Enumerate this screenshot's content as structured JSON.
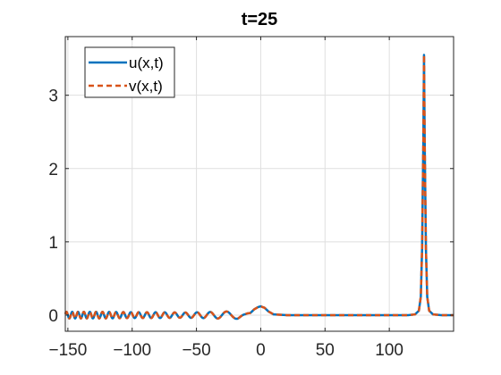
{
  "chart_data": {
    "type": "line",
    "title": "t=25",
    "xlabel": "",
    "ylabel": "",
    "xlim": [
      -152,
      150
    ],
    "ylim": [
      -0.22,
      3.8
    ],
    "x_ticks": [
      -150,
      -100,
      -50,
      0,
      50,
      100
    ],
    "y_ticks": [
      0,
      1,
      2,
      3
    ],
    "grid": true,
    "legend_position": "top-left",
    "series": [
      {
        "name": "u(x,t)",
        "style": "solid",
        "color": "#0072BD",
        "x": [
          -152,
          -140,
          -120,
          -100,
          -80,
          -60,
          -45,
          -35,
          -25,
          -18,
          -12,
          -8,
          -5,
          -2,
          0,
          3,
          6,
          10,
          20,
          40,
          60,
          80,
          100,
          115,
          120,
          123,
          124.5,
          125.5,
          126.5,
          127,
          127.5,
          128.5,
          129.5,
          131,
          134,
          140,
          150
        ],
        "y": [
          0.0,
          0.0,
          0.0,
          0.0,
          0.0,
          0.0,
          0.0,
          0.0,
          0.0,
          0.0,
          0.0,
          0.03,
          0.08,
          0.11,
          0.12,
          0.1,
          0.05,
          0.01,
          0.0,
          0.0,
          0.0,
          0.0,
          0.0,
          0.0,
          0.01,
          0.06,
          0.25,
          0.9,
          2.4,
          3.55,
          2.4,
          0.9,
          0.25,
          0.06,
          0.01,
          0.0,
          0.0
        ],
        "oscillation_amplitude": [
          0.045,
          0.045,
          0.045,
          0.04,
          0.04,
          0.035,
          0.04,
          0.045,
          0.05,
          0.05,
          0.02,
          0.0,
          0.0,
          0.0,
          0.0,
          0.0,
          0.0,
          0.0,
          0.0,
          0.0,
          0.0,
          0.0,
          0.0,
          0.0,
          0.0,
          0.0,
          0.0,
          0.0,
          0.0,
          0.0,
          0.0,
          0.0,
          0.0,
          0.0,
          0.0,
          0.0,
          0.0
        ],
        "oscillation_wavelength": [
          4.5,
          4.5,
          5.2,
          6.0,
          7.0,
          8.5,
          10.0,
          12.0,
          15.0,
          18.0,
          20.0,
          20.0,
          20.0,
          20.0,
          20.0,
          20.0,
          20.0,
          20.0,
          20.0,
          20.0,
          20.0,
          20.0,
          20.0,
          20.0,
          20.0,
          20.0,
          20.0,
          20.0,
          20.0,
          20.0,
          20.0,
          20.0,
          20.0,
          20.0,
          20.0,
          20.0,
          20.0
        ]
      },
      {
        "name": "v(x,t)",
        "style": "dashed",
        "color": "#D95319",
        "x": [
          -152,
          -140,
          -120,
          -100,
          -80,
          -60,
          -45,
          -35,
          -25,
          -18,
          -12,
          -8,
          -5,
          -2,
          0,
          3,
          6,
          10,
          20,
          40,
          60,
          80,
          100,
          115,
          120,
          123,
          124.5,
          125.5,
          126.5,
          127,
          127.5,
          128.5,
          129.5,
          131,
          134,
          140,
          150
        ],
        "y": [
          0.0,
          0.0,
          0.0,
          0.0,
          0.0,
          0.0,
          0.0,
          0.0,
          0.0,
          0.0,
          0.0,
          0.03,
          0.08,
          0.11,
          0.12,
          0.1,
          0.05,
          0.01,
          0.0,
          0.0,
          0.0,
          0.0,
          0.0,
          0.0,
          0.01,
          0.06,
          0.25,
          0.9,
          2.4,
          3.55,
          2.4,
          0.9,
          0.25,
          0.06,
          0.01,
          0.0,
          0.0
        ],
        "oscillation_amplitude": [
          0.045,
          0.045,
          0.045,
          0.04,
          0.04,
          0.035,
          0.04,
          0.045,
          0.05,
          0.05,
          0.02,
          0.0,
          0.0,
          0.0,
          0.0,
          0.0,
          0.0,
          0.0,
          0.0,
          0.0,
          0.0,
          0.0,
          0.0,
          0.0,
          0.0,
          0.0,
          0.0,
          0.0,
          0.0,
          0.0,
          0.0,
          0.0,
          0.0,
          0.0,
          0.0,
          0.0,
          0.0
        ],
        "oscillation_wavelength": [
          4.5,
          4.5,
          5.2,
          6.0,
          7.0,
          8.5,
          10.0,
          12.0,
          15.0,
          18.0,
          20.0,
          20.0,
          20.0,
          20.0,
          20.0,
          20.0,
          20.0,
          20.0,
          20.0,
          20.0,
          20.0,
          20.0,
          20.0,
          20.0,
          20.0,
          20.0,
          20.0,
          20.0,
          20.0,
          20.0,
          20.0,
          20.0,
          20.0,
          20.0,
          20.0,
          20.0,
          20.0
        ]
      }
    ]
  }
}
